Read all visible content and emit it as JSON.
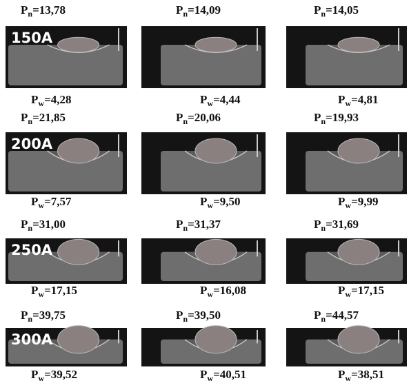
{
  "symbol": "P",
  "top_sub": "n",
  "bottom_sub": "w",
  "rows": [
    {
      "current": "150A",
      "panels": [
        {
          "top": "=13,78",
          "bottom": "=4,28"
        },
        {
          "top": "=14,09",
          "bottom": "=4,44"
        },
        {
          "top": "=14,05",
          "bottom": "=4,81"
        }
      ]
    },
    {
      "current": "200A",
      "panels": [
        {
          "top": "=21,85",
          "bottom": "=7,57"
        },
        {
          "top": "=20,06",
          "bottom": "=9,50"
        },
        {
          "top": "=19,93",
          "bottom": "=9,99"
        }
      ]
    },
    {
      "current": "250A",
      "panels": [
        {
          "top": "=31,00",
          "bottom": "=17,15"
        },
        {
          "top": "=31,37",
          "bottom": "=16,08"
        },
        {
          "top": "=31,69",
          "bottom": "=17,15"
        }
      ]
    },
    {
      "current": "300A",
      "panels": [
        {
          "top": "=39,75",
          "bottom": "=39,52"
        },
        {
          "top": "=39,50",
          "bottom": "=40,51"
        },
        {
          "top": "=44,57",
          "bottom": "=38,51"
        }
      ]
    }
  ]
}
